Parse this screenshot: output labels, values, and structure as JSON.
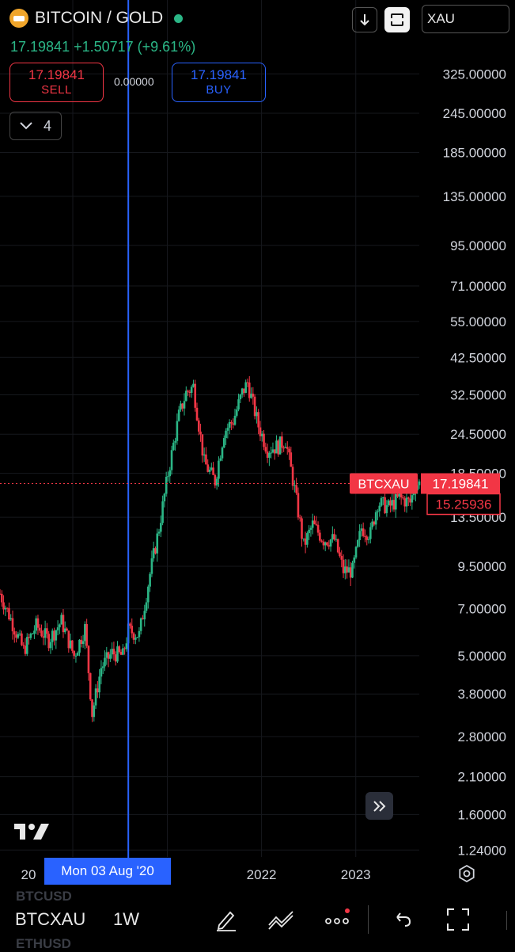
{
  "header": {
    "title": "BITCOIN / GOLD",
    "symbol_input": "XAU",
    "last": "17.19841",
    "change": "+1.50717 (+9.61%)",
    "line": "17.19841 +1.50717 (+9.61%)"
  },
  "trade": {
    "sell_price": "17.19841",
    "sell_label": "SELL",
    "spread": "0.00000",
    "buy_price": "17.19841",
    "buy_label": "BUY"
  },
  "indicators": {
    "count": "4"
  },
  "crosshair": {
    "date_label": "Mon 03 Aug '20"
  },
  "bottom": {
    "symbol": "BTCXAU",
    "timeframe": "1W",
    "ghost_1": "BTCUSD",
    "ghost_2": "ETHUSD"
  },
  "colors": {
    "up": "#2bb686",
    "down": "#f23645",
    "accent": "#2962ff"
  },
  "icons": [
    "gold-bars-logo-icon",
    "download-icon",
    "fullscreen-icon",
    "chevron-down-icon",
    "scroll-forward-icon",
    "tradingview-logo",
    "settings-icon",
    "draw-icon",
    "patterns-icon",
    "more-icon",
    "undo-icon",
    "expand-icon"
  ],
  "chart_data": {
    "type": "candlestick",
    "scale": "log",
    "series_label": "BTCXAU",
    "last_price": 17.19841,
    "alt_price": 15.25936,
    "x_ticks": [
      "20",
      "2022",
      "2023"
    ],
    "y_ticks": [
      325,
      245,
      185,
      135,
      95,
      71,
      55,
      42.5,
      32.5,
      24.5,
      18.5,
      13.5,
      9.5,
      7.0,
      5.0,
      3.8,
      2.8,
      2.1,
      1.6,
      1.24
    ],
    "y_tick_labels": [
      "325.00000",
      "245.00000",
      "185.00000",
      "135.00000",
      "95.00000",
      "71.00000",
      "55.00000",
      "42.50000",
      "32.50000",
      "24.50000",
      "18.50000",
      "13.50000",
      "9.50000",
      "7.00000",
      "5.00000",
      "3.80000",
      "2.80000",
      "2.10000",
      "1.60000",
      "1.24000"
    ],
    "x_range": [
      "2019-03-25",
      "2023-09-04"
    ],
    "ylim": [
      1.18,
      440
    ],
    "weekly_close_points": [
      [
        "2019-03-25",
        7.8
      ],
      [
        "2019-05-06",
        6.5
      ],
      [
        "2019-06-24",
        5.2
      ],
      [
        "2019-08-12",
        6.2
      ],
      [
        "2019-09-30",
        5.6
      ],
      [
        "2019-11-18",
        6.4
      ],
      [
        "2020-01-06",
        5.0
      ],
      [
        "2020-02-17",
        6.1
      ],
      [
        "2020-03-16",
        3.3
      ],
      [
        "2020-04-20",
        4.6
      ],
      [
        "2020-06-01",
        5.1
      ],
      [
        "2020-07-13",
        5.0
      ],
      [
        "2020-08-03",
        6.0
      ],
      [
        "2020-09-14",
        5.8
      ],
      [
        "2020-10-26",
        9.0
      ],
      [
        "2020-11-30",
        12.5
      ],
      [
        "2021-01-04",
        18.5
      ],
      [
        "2021-02-15",
        28.0
      ],
      [
        "2021-03-15",
        33.0
      ],
      [
        "2021-04-12",
        34.5
      ],
      [
        "2021-05-24",
        20.0
      ],
      [
        "2021-07-05",
        17.5
      ],
      [
        "2021-08-09",
        25.0
      ],
      [
        "2021-09-13",
        27.0
      ],
      [
        "2021-10-18",
        33.0
      ],
      [
        "2021-11-08",
        35.5
      ],
      [
        "2021-12-20",
        26.0
      ],
      [
        "2022-01-24",
        22.0
      ],
      [
        "2022-03-07",
        22.5
      ],
      [
        "2022-04-04",
        23.5
      ],
      [
        "2022-05-09",
        16.5
      ],
      [
        "2022-06-13",
        11.0
      ],
      [
        "2022-07-18",
        12.8
      ],
      [
        "2022-08-29",
        11.5
      ],
      [
        "2022-10-10",
        11.5
      ],
      [
        "2022-11-14",
        9.2
      ],
      [
        "2022-12-19",
        9.2
      ],
      [
        "2023-01-23",
        12.5
      ],
      [
        "2023-02-27",
        12.0
      ],
      [
        "2023-03-27",
        15.0
      ],
      [
        "2023-05-08",
        14.5
      ],
      [
        "2023-06-19",
        15.5
      ],
      [
        "2023-07-31",
        15.0
      ],
      [
        "2023-08-21",
        17.2
      ]
    ]
  }
}
